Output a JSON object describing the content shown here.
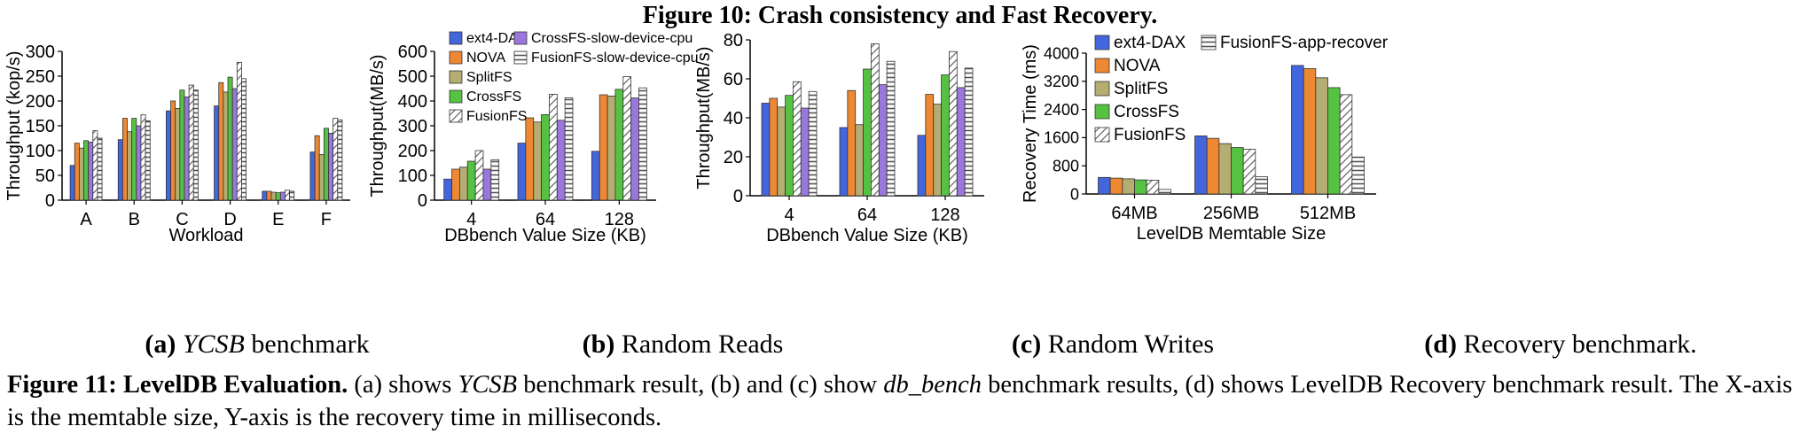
{
  "figure_title": "Figure 10: Crash consistency and Fast Recovery.",
  "subcaptions": [
    {
      "letter": "(a)",
      "text_italic": "YCSB",
      "text_rest": " benchmark"
    },
    {
      "letter": "(b)",
      "text_italic": "",
      "text_rest": " Random Reads"
    },
    {
      "letter": "(c)",
      "text_italic": "",
      "text_rest": " Random Writes"
    },
    {
      "letter": "(d)",
      "text_italic": "",
      "text_rest": " Recovery benchmark."
    }
  ],
  "caption": {
    "label": "Figure 11: LevelDB Evaluation.",
    "p1": " (a) shows ",
    "i1": "YCSB",
    "p2": " benchmark result, (b) and (c) show ",
    "i2": "db_bench",
    "p3": " benchmark results, (d) shows LevelDB Recovery benchmark result. The X-axis is the memtable size, Y-axis is the recovery time in milliseconds."
  },
  "styles": {
    "ext4-DAX": {
      "color": "#4466dd",
      "pattern": "solid"
    },
    "NOVA": {
      "color": "#ee8833",
      "pattern": "solid"
    },
    "SplitFS": {
      "color": "#b5ad72",
      "pattern": "solid"
    },
    "CrossFS": {
      "color": "#55c341",
      "pattern": "solid"
    },
    "FusionFS": {
      "color": "#ffffff",
      "pattern": "diag"
    },
    "CrossFS-slow-device-cpu": {
      "color": "#9977dd",
      "pattern": "solid"
    },
    "FusionFS-slow-device-cpu": {
      "color": "#ffffff",
      "pattern": "horiz"
    },
    "FusionFS-app-recover": {
      "color": "#ffffff",
      "pattern": "horiz"
    }
  },
  "chart_data": [
    {
      "id": "a",
      "type": "bar",
      "ylabel": "Throughput (kop/s)",
      "xlabel": "Workload",
      "ylim": [
        0,
        300
      ],
      "yticks": [
        0,
        50,
        100,
        150,
        200,
        250,
        300
      ],
      "categories": [
        "A",
        "B",
        "C",
        "D",
        "E",
        "F"
      ],
      "series": [
        {
          "name": "ext4-DAX",
          "values": [
            70,
            122,
            180,
            190,
            18,
            97
          ]
        },
        {
          "name": "NOVA",
          "values": [
            115,
            165,
            200,
            237,
            18,
            130
          ]
        },
        {
          "name": "SplitFS",
          "values": [
            105,
            138,
            185,
            218,
            16,
            92
          ]
        },
        {
          "name": "CrossFS",
          "values": [
            120,
            165,
            222,
            248,
            15,
            145
          ]
        },
        {
          "name": "CrossFS-slow-device-cpu",
          "values": [
            117,
            150,
            208,
            225,
            16,
            135
          ]
        },
        {
          "name": "FusionFS",
          "values": [
            140,
            172,
            232,
            278,
            20,
            165
          ]
        },
        {
          "name": "FusionFS-slow-device-cpu",
          "values": [
            125,
            160,
            222,
            245,
            18,
            162
          ]
        }
      ]
    },
    {
      "id": "b",
      "type": "bar",
      "ylabel": "Throughput(MB/s)",
      "xlabel": "DBbench Value Size (KB)",
      "ylim": [
        0,
        600
      ],
      "yticks": [
        0,
        100,
        200,
        300,
        400,
        500,
        600
      ],
      "categories": [
        "4",
        "64",
        "128"
      ],
      "legend": [
        "ext4-DAX",
        "NOVA",
        "SplitFS",
        "CrossFS",
        "FusionFS",
        "CrossFS-slow-device-cpu",
        "FusionFS-slow-device-cpu"
      ],
      "series": [
        {
          "name": "ext4-DAX",
          "values": [
            85,
            230,
            197
          ]
        },
        {
          "name": "NOVA",
          "values": [
            125,
            332,
            425
          ]
        },
        {
          "name": "SplitFS",
          "values": [
            133,
            315,
            420
          ]
        },
        {
          "name": "CrossFS",
          "values": [
            157,
            345,
            447
          ]
        },
        {
          "name": "FusionFS",
          "values": [
            200,
            427,
            498
          ]
        },
        {
          "name": "CrossFS-slow-device-cpu",
          "values": [
            125,
            322,
            412
          ]
        },
        {
          "name": "FusionFS-slow-device-cpu",
          "values": [
            163,
            413,
            453
          ]
        }
      ]
    },
    {
      "id": "c",
      "type": "bar",
      "ylabel": "Throughput(MB/s)",
      "xlabel": "DBbench Value Size (KB)",
      "ylim": [
        0,
        80
      ],
      "yticks": [
        0,
        20,
        40,
        60,
        80
      ],
      "categories": [
        "4",
        "64",
        "128"
      ],
      "series": [
        {
          "name": "ext4-DAX",
          "values": [
            47.5,
            35,
            31
          ]
        },
        {
          "name": "NOVA",
          "values": [
            50,
            54,
            52
          ]
        },
        {
          "name": "SplitFS",
          "values": [
            45.5,
            36.5,
            47
          ]
        },
        {
          "name": "CrossFS",
          "values": [
            51.5,
            65,
            62
          ]
        },
        {
          "name": "FusionFS",
          "values": [
            58.5,
            78,
            74
          ]
        },
        {
          "name": "CrossFS-slow-device-cpu",
          "values": [
            45,
            57,
            55.5
          ]
        },
        {
          "name": "FusionFS-slow-device-cpu",
          "values": [
            53.5,
            69,
            65.5
          ]
        }
      ]
    },
    {
      "id": "d",
      "type": "bar",
      "ylabel": "Recovery Time (ms)",
      "xlabel": "LevelDB Memtable Size",
      "ylim": [
        0,
        4000
      ],
      "yticks": [
        0,
        800,
        1600,
        2400,
        3200,
        4000
      ],
      "categories": [
        "64MB",
        "256MB",
        "512MB"
      ],
      "legend": [
        "ext4-DAX",
        "NOVA",
        "SplitFS",
        "CrossFS",
        "FusionFS",
        "FusionFS-app-recover"
      ],
      "series": [
        {
          "name": "ext4-DAX",
          "values": [
            470,
            1650,
            3650
          ]
        },
        {
          "name": "NOVA",
          "values": [
            450,
            1580,
            3560
          ]
        },
        {
          "name": "SplitFS",
          "values": [
            430,
            1430,
            3300
          ]
        },
        {
          "name": "CrossFS",
          "values": [
            400,
            1320,
            3020
          ]
        },
        {
          "name": "FusionFS",
          "values": [
            390,
            1270,
            2820
          ]
        },
        {
          "name": "FusionFS-app-recover",
          "values": [
            130,
            490,
            1050
          ]
        }
      ]
    }
  ]
}
